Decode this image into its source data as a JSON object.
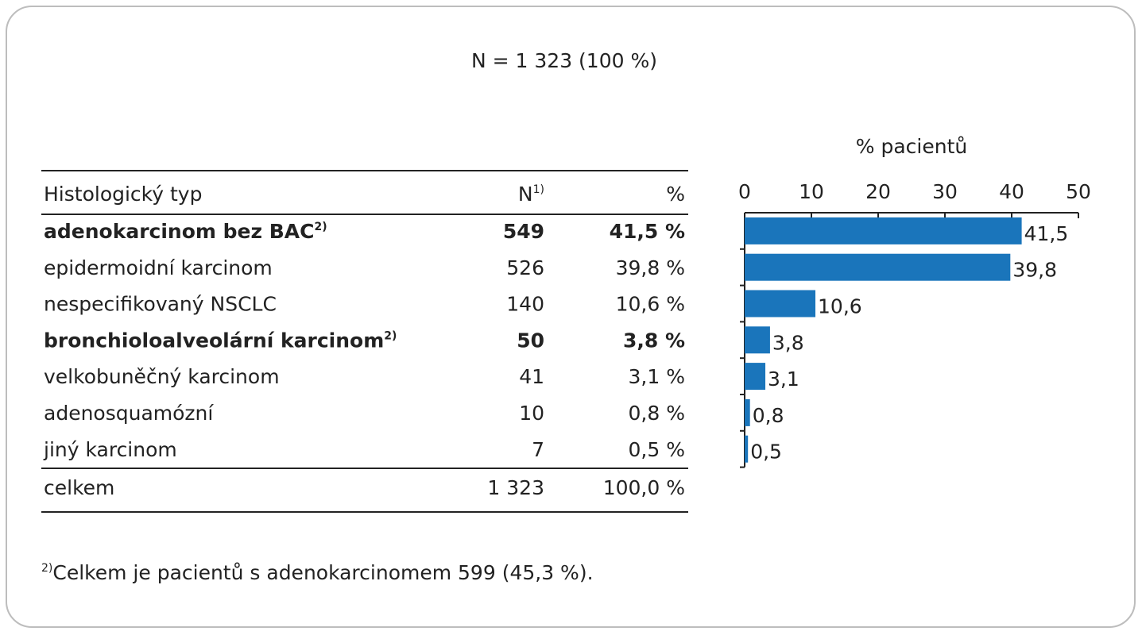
{
  "title": "N = 1 323 (100 %)",
  "table": {
    "header": [
      {
        "text": "Histologický typ"
      },
      {
        "text": "N",
        "sup": "1)"
      },
      {
        "text": "%"
      }
    ],
    "rows": [
      {
        "cells": [
          "adenokarcinom bez BAC",
          "549",
          "41,5 %"
        ],
        "sup": "2)",
        "bold": true
      },
      {
        "cells": [
          "epidermoidní karcinom",
          "526",
          "39,8 %"
        ]
      },
      {
        "cells": [
          "nespecifikovaný NSCLC",
          "140",
          "10,6 %"
        ]
      },
      {
        "cells": [
          "bronchioloalveolární karcinom",
          "50",
          "3,8 %"
        ],
        "sup": "2)",
        "bold": true
      },
      {
        "cells": [
          "velkobuněčný karcinom",
          "41",
          "3,1 %"
        ]
      },
      {
        "cells": [
          "adenosquamózní",
          "10",
          "0,8 %"
        ]
      },
      {
        "cells": [
          "jiný karcinom",
          "7",
          "0,5 %"
        ]
      }
    ],
    "total": [
      "celkem",
      "1 323",
      "100,0 %"
    ]
  },
  "footnote": {
    "sup": "2)",
    "text": "Celkem je pacientů s adenokarcinomem 599 (45,3 %)."
  },
  "chart_data": {
    "type": "bar",
    "x_label": "% pacientů",
    "values": [
      41.5,
      39.8,
      10.6,
      3.8,
      3.1,
      0.8,
      0.5
    ],
    "value_labels": [
      "41,5",
      "39,8",
      "10,6",
      "3,8",
      "3,1",
      "0,8",
      "0,5"
    ],
    "xlim": [
      0,
      50
    ],
    "xticks": [
      0,
      10,
      20,
      30,
      40,
      50
    ],
    "color": "#1a75bb"
  }
}
